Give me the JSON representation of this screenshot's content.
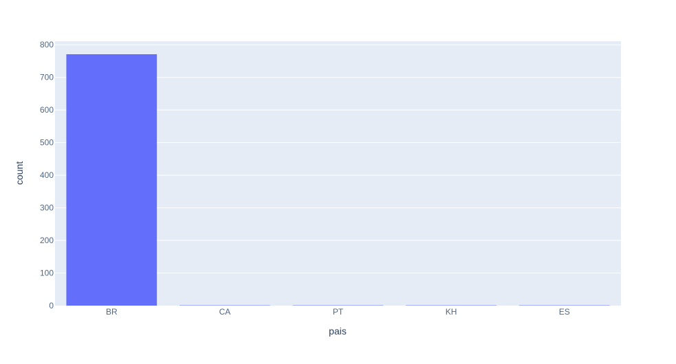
{
  "chart_data": {
    "type": "bar",
    "categories": [
      "BR",
      "CA",
      "PT",
      "KH",
      "ES"
    ],
    "values": [
      771,
      1,
      1,
      1,
      1
    ],
    "xlabel": "pais",
    "ylabel": "count",
    "ylim": [
      0,
      811
    ],
    "yticks": [
      "0",
      "100",
      "200",
      "300",
      "400",
      "500",
      "600",
      "700",
      "800"
    ],
    "grid": true,
    "colors": {
      "bar": "#636efa",
      "plot_bg": "#e5ecf6",
      "grid": "#ffffff",
      "text": "#2a3f5f",
      "tick_text": "#506784"
    }
  }
}
